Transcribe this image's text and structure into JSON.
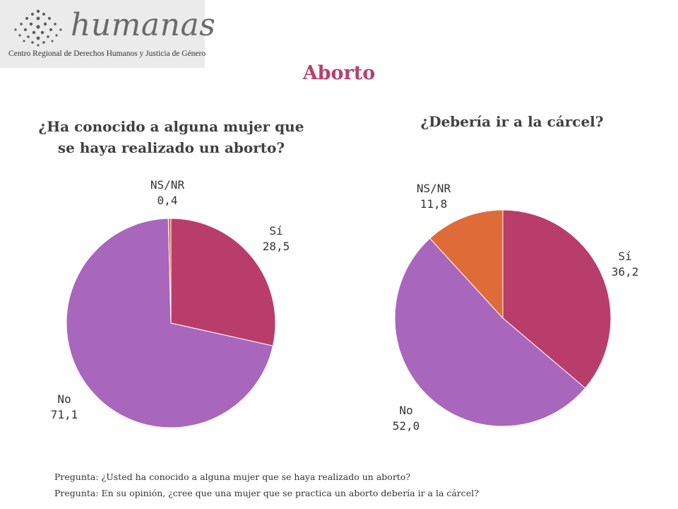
{
  "logo": {
    "brand": "humanas",
    "tagline": "Centro Regional de Derechos Humanos y Justicia de Género"
  },
  "title": "Aborto",
  "colors": {
    "si": "#b93d6b",
    "no": "#a966bd",
    "nsnr": "#df6c38",
    "title": "#b8406e"
  },
  "chart_data": [
    {
      "type": "pie",
      "title": "¿Ha conocido a alguna mujer que se haya realizado un aborto?",
      "title_lines": [
        "¿Ha conocido a alguna mujer que",
        "se haya realizado un aborto?"
      ],
      "slices": [
        {
          "name": "Sí",
          "value": 28.5,
          "label": "28,5",
          "color": "#b93d6b"
        },
        {
          "name": "No",
          "value": 71.1,
          "label": "71,1",
          "color": "#a966bd"
        },
        {
          "name": "NS/NR",
          "value": 0.4,
          "label": "0,4",
          "color": "#df6c38"
        }
      ]
    },
    {
      "type": "pie",
      "title": "¿Debería ir a la cárcel?",
      "title_lines": [
        "¿Debería ir a la cárcel?"
      ],
      "slices": [
        {
          "name": "Sí",
          "value": 36.2,
          "label": "36,2",
          "color": "#b93d6b"
        },
        {
          "name": "No",
          "value": 52.0,
          "label": "52,0",
          "color": "#a966bd"
        },
        {
          "name": "NS/NR",
          "value": 11.8,
          "label": "11,8",
          "color": "#df6c38"
        }
      ]
    }
  ],
  "footnotes": [
    "Pregunta: ¿Usted ha conocido a alguna mujer que se haya realizado un aborto?",
    "Pregunta: En su opinión, ¿cree que una mujer que se practica un aborto debería ir a la cárcel?"
  ]
}
